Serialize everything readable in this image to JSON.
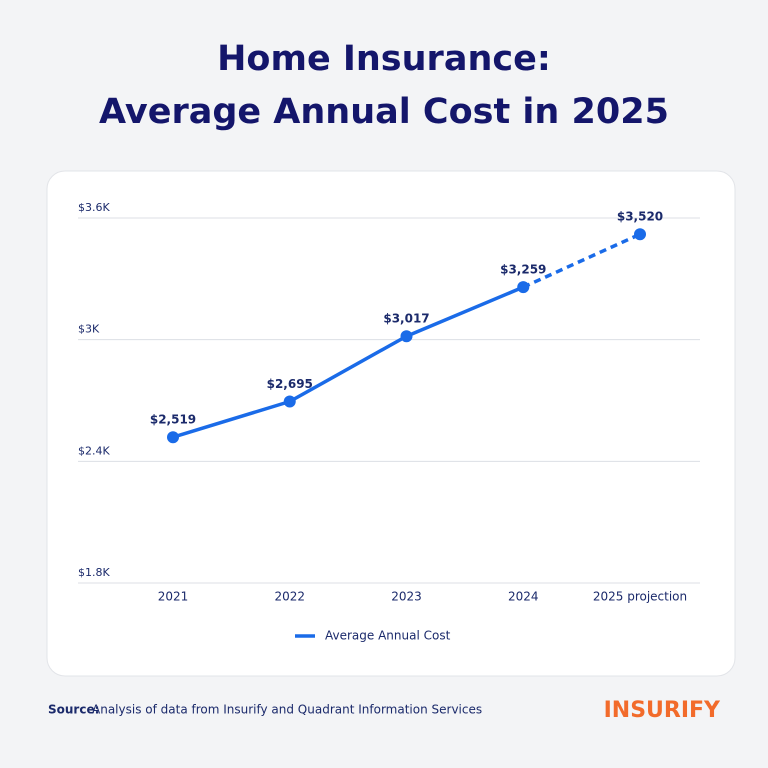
{
  "chart_data": {
    "type": "line",
    "title_lines": [
      "Home Insurance:",
      "Average Annual Cost in 2025"
    ],
    "categories": [
      "2021",
      "2022",
      "2023",
      "2024",
      "2025 projection"
    ],
    "series": [
      {
        "name": "Average Annual Cost",
        "color": "#1a6be8",
        "values": [
          2519,
          2695,
          3017,
          3259,
          3520
        ],
        "value_labels": [
          "$2,519",
          "$2,695",
          "$3,017",
          "$3,259",
          "$3,520"
        ],
        "projected": [
          false,
          false,
          false,
          false,
          true
        ]
      }
    ],
    "ylim": [
      1800,
      3600
    ],
    "yticks": [
      {
        "value": 1800,
        "label": "$1.8K"
      },
      {
        "value": 2400,
        "label": "$2.4K"
      },
      {
        "value": 3000,
        "label": "$3K"
      },
      {
        "value": 3600,
        "label": "$3.6K"
      }
    ],
    "grid": true,
    "legend": "bottom",
    "source_label": "Source:",
    "source_text": "Analysis of data from Insurify and Quadrant Information Services",
    "brand": "INSURIFY"
  }
}
